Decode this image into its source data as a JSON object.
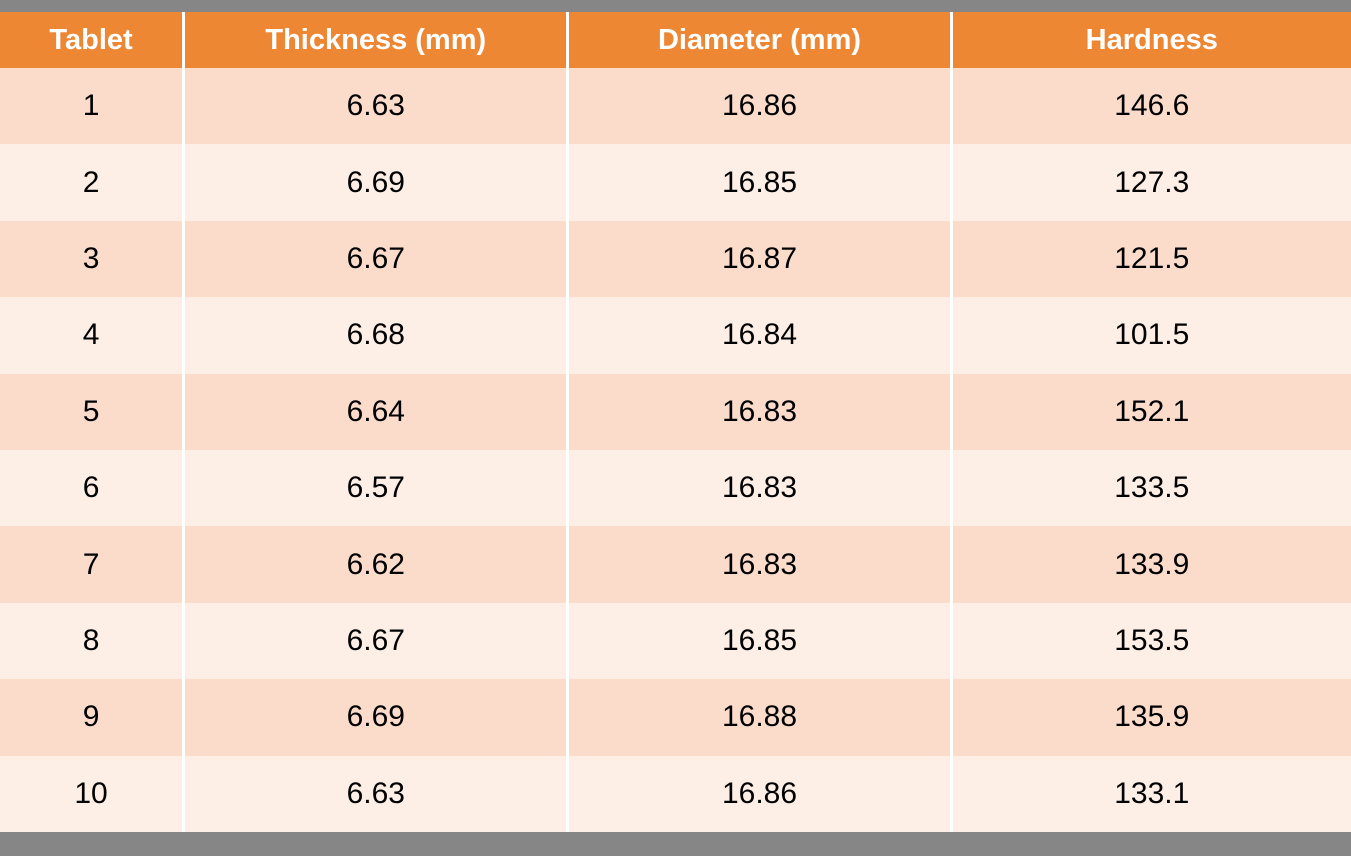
{
  "colors": {
    "header_bg": "#ED8733",
    "header_text": "#FFFFFF",
    "row_band_dark": "#FBDCCB",
    "row_band_light": "#FDEEE6",
    "gridline": "#FFFFFF",
    "frame_background": "#868686",
    "cell_text": "#000000"
  },
  "chart_data": {
    "type": "table",
    "title": "",
    "columns": [
      "Tablet",
      "Thickness (mm)",
      "Diameter (mm)",
      "Hardness"
    ],
    "rows": [
      [
        "1",
        "6.63",
        "16.86",
        "146.6"
      ],
      [
        "2",
        "6.69",
        "16.85",
        "127.3"
      ],
      [
        "3",
        "6.67",
        "16.87",
        "121.5"
      ],
      [
        "4",
        "6.68",
        "16.84",
        "101.5"
      ],
      [
        "5",
        "6.64",
        "16.83",
        "152.1"
      ],
      [
        "6",
        "6.57",
        "16.83",
        "133.5"
      ],
      [
        "7",
        "6.62",
        "16.83",
        "133.9"
      ],
      [
        "8",
        "6.67",
        "16.85",
        "153.5"
      ],
      [
        "9",
        "6.69",
        "16.88",
        "135.9"
      ],
      [
        "10",
        "6.63",
        "16.86",
        "133.1"
      ]
    ]
  }
}
